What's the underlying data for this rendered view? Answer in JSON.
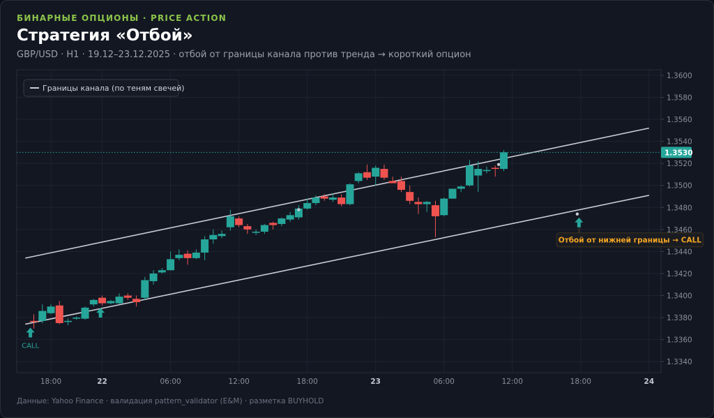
{
  "header": {
    "eyebrow": "БИНАРНЫЕ ОПЦИОНЫ · PRICE ACTION",
    "title": "Стратегия «Отбой»",
    "subtitle": "GBP/USD · H1 · 19.12–23.12.2025 · отбой от границы канала против тренда → короткий опцион"
  },
  "footer": "Данные: Yahoo Finance · валидация pattern_validator (E&M) · разметка BUYHOLD",
  "colors": {
    "up": "#26a69a",
    "down": "#ef5350",
    "channel": "#c9ccd4",
    "grid": "#1e2330",
    "annotation": "#f5a623"
  },
  "chart_data": {
    "type": "candlestick",
    "ylim": [
      1.333,
      1.3605
    ],
    "yticks": [
      1.334,
      1.336,
      1.338,
      1.34,
      1.342,
      1.344,
      1.346,
      1.348,
      1.35,
      1.352,
      1.354,
      1.356,
      1.358,
      1.36
    ],
    "xlim": [
      -1.0,
      36.7
    ],
    "xticks": [
      {
        "x": 1,
        "label": "18:00",
        "bold": false
      },
      {
        "x": 4,
        "label": "22",
        "bold": true
      },
      {
        "x": 8,
        "label": "06:00",
        "bold": false
      },
      {
        "x": 12,
        "label": "12:00",
        "bold": false
      },
      {
        "x": 16,
        "label": "18:00",
        "bold": false
      },
      {
        "x": 20,
        "label": "23",
        "bold": true
      },
      {
        "x": 24,
        "label": "06:00",
        "bold": false
      },
      {
        "x": 28,
        "label": "12:00",
        "bold": false
      },
      {
        "x": 32,
        "label": "18:00",
        "bold": false
      },
      {
        "x": 36,
        "label": "24",
        "bold": true
      }
    ],
    "legend": {
      "label": "Границы канала (по теням свечей)",
      "position": "top-left"
    },
    "candles": [
      {
        "o": 1.3377,
        "h": 1.3383,
        "l": 1.337,
        "c": 1.3376
      },
      {
        "o": 1.3377,
        "h": 1.3392,
        "l": 1.3375,
        "c": 1.3386
      },
      {
        "o": 1.3384,
        "h": 1.3392,
        "l": 1.3383,
        "c": 1.339
      },
      {
        "o": 1.3391,
        "h": 1.3395,
        "l": 1.3374,
        "c": 1.3375
      },
      {
        "o": 1.3376,
        "h": 1.3379,
        "l": 1.3373,
        "c": 1.3377
      },
      {
        "o": 1.3379,
        "h": 1.3381,
        "l": 1.3378,
        "c": 1.338
      },
      {
        "o": 1.3379,
        "h": 1.339,
        "l": 1.3378,
        "c": 1.3389
      },
      {
        "o": 1.3392,
        "h": 1.3397,
        "l": 1.339,
        "c": 1.3396
      },
      {
        "o": 1.3398,
        "h": 1.34,
        "l": 1.3391,
        "c": 1.3393
      },
      {
        "o": 1.3393,
        "h": 1.3396,
        "l": 1.3392,
        "c": 1.3395
      },
      {
        "o": 1.3393,
        "h": 1.3402,
        "l": 1.3392,
        "c": 1.3399
      },
      {
        "o": 1.34,
        "h": 1.3402,
        "l": 1.3396,
        "c": 1.3398
      },
      {
        "o": 1.3397,
        "h": 1.34,
        "l": 1.339,
        "c": 1.3394
      },
      {
        "o": 1.3398,
        "h": 1.3417,
        "l": 1.3396,
        "c": 1.3414
      },
      {
        "o": 1.3413,
        "h": 1.3423,
        "l": 1.341,
        "c": 1.342
      },
      {
        "o": 1.3421,
        "h": 1.3425,
        "l": 1.342,
        "c": 1.3423
      },
      {
        "o": 1.3423,
        "h": 1.344,
        "l": 1.3423,
        "c": 1.3433
      },
      {
        "o": 1.3434,
        "h": 1.3442,
        "l": 1.3432,
        "c": 1.3437
      },
      {
        "o": 1.3438,
        "h": 1.3441,
        "l": 1.3428,
        "c": 1.3434
      },
      {
        "o": 1.3434,
        "h": 1.3442,
        "l": 1.3433,
        "c": 1.3439
      },
      {
        "o": 1.3439,
        "h": 1.3454,
        "l": 1.3432,
        "c": 1.3451
      },
      {
        "o": 1.3451,
        "h": 1.346,
        "l": 1.3447,
        "c": 1.3455
      },
      {
        "o": 1.3454,
        "h": 1.3459,
        "l": 1.3452,
        "c": 1.3456
      },
      {
        "o": 1.3462,
        "h": 1.3478,
        "l": 1.3459,
        "c": 1.3472
      },
      {
        "o": 1.347,
        "h": 1.3472,
        "l": 1.3462,
        "c": 1.3464
      },
      {
        "o": 1.3463,
        "h": 1.3465,
        "l": 1.3456,
        "c": 1.346
      },
      {
        "o": 1.3457,
        "h": 1.346,
        "l": 1.3455,
        "c": 1.3458
      },
      {
        "o": 1.3458,
        "h": 1.3465,
        "l": 1.3456,
        "c": 1.3464
      },
      {
        "o": 1.3466,
        "h": 1.3467,
        "l": 1.346,
        "c": 1.3464
      },
      {
        "o": 1.3465,
        "h": 1.3471,
        "l": 1.3463,
        "c": 1.347
      },
      {
        "o": 1.3469,
        "h": 1.3476,
        "l": 1.3467,
        "c": 1.3473
      },
      {
        "o": 1.3471,
        "h": 1.3482,
        "l": 1.3469,
        "c": 1.3479
      },
      {
        "o": 1.3479,
        "h": 1.3488,
        "l": 1.3478,
        "c": 1.3484
      },
      {
        "o": 1.3484,
        "h": 1.3491,
        "l": 1.3482,
        "c": 1.3489
      },
      {
        "o": 1.349,
        "h": 1.3492,
        "l": 1.3486,
        "c": 1.3488
      },
      {
        "o": 1.3487,
        "h": 1.3493,
        "l": 1.3485,
        "c": 1.3489
      },
      {
        "o": 1.3489,
        "h": 1.3492,
        "l": 1.3481,
        "c": 1.3483
      },
      {
        "o": 1.3483,
        "h": 1.3502,
        "l": 1.3482,
        "c": 1.3501
      },
      {
        "o": 1.3504,
        "h": 1.3512,
        "l": 1.3502,
        "c": 1.3511
      },
      {
        "o": 1.3512,
        "h": 1.3519,
        "l": 1.3505,
        "c": 1.3507
      },
      {
        "o": 1.3508,
        "h": 1.3518,
        "l": 1.35,
        "c": 1.3516
      },
      {
        "o": 1.3515,
        "h": 1.3519,
        "l": 1.3505,
        "c": 1.3507
      },
      {
        "o": 1.3504,
        "h": 1.3508,
        "l": 1.3503,
        "c": 1.3502
      },
      {
        "o": 1.3504,
        "h": 1.3508,
        "l": 1.3494,
        "c": 1.3496
      },
      {
        "o": 1.3494,
        "h": 1.35,
        "l": 1.3483,
        "c": 1.3486
      },
      {
        "o": 1.3485,
        "h": 1.3489,
        "l": 1.3474,
        "c": 1.3483
      },
      {
        "o": 1.3483,
        "h": 1.3486,
        "l": 1.3476,
        "c": 1.3485
      },
      {
        "o": 1.3482,
        "h": 1.3486,
        "l": 1.3453,
        "c": 1.3472
      },
      {
        "o": 1.3473,
        "h": 1.3489,
        "l": 1.3472,
        "c": 1.3488
      },
      {
        "o": 1.3488,
        "h": 1.3496,
        "l": 1.3488,
        "c": 1.3497
      },
      {
        "o": 1.3497,
        "h": 1.35,
        "l": 1.3494,
        "c": 1.3499
      },
      {
        "o": 1.35,
        "h": 1.3523,
        "l": 1.3499,
        "c": 1.3518
      },
      {
        "o": 1.3509,
        "h": 1.3522,
        "l": 1.3494,
        "c": 1.3515
      },
      {
        "o": 1.3513,
        "h": 1.3517,
        "l": 1.3511,
        "c": 1.3514
      },
      {
        "o": 1.3516,
        "h": 1.3518,
        "l": 1.3508,
        "c": 1.3515
      },
      {
        "o": 1.3515,
        "h": 1.3532,
        "l": 1.3513,
        "c": 1.353
      }
    ],
    "channel": {
      "upper": [
        [
          -0.5,
          1.3434
        ],
        [
          36.0,
          1.3552
        ]
      ],
      "lower": [
        [
          -0.5,
          1.3374
        ],
        [
          36.0,
          1.3491
        ]
      ]
    },
    "touch_points": [
      {
        "x": 15.5,
        "y": 1.3478
      },
      {
        "x": 27.2,
        "y": 1.3519
      },
      {
        "x": 31.8,
        "y": 1.3474
      }
    ],
    "signals": [
      {
        "x": -0.2,
        "y": 1.3374,
        "label": "CALL"
      },
      {
        "x": 3.9,
        "y": 1.3392,
        "label": ""
      },
      {
        "x": 31.9,
        "y": 1.3474,
        "label": ""
      }
    ],
    "annotation": {
      "x": 31.9,
      "y": 1.3474,
      "text": "Отбой от нижней границы → CALL"
    },
    "last_price": {
      "value": 1.353,
      "label": "1.3530"
    }
  }
}
